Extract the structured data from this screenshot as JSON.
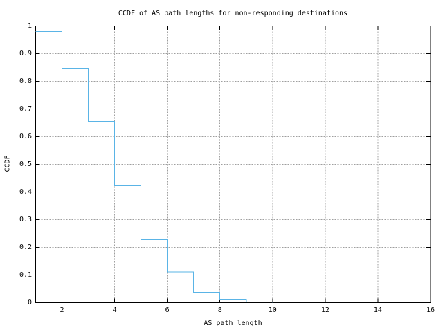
{
  "chart_data": {
    "type": "line",
    "subtype": "step-post",
    "title": "CCDF of AS path lengths for non-responding destinations",
    "xlabel": "AS path length",
    "ylabel": "CCDF",
    "xlim": [
      1,
      16
    ],
    "ylim": [
      0,
      1
    ],
    "xticks": [
      2,
      4,
      6,
      8,
      10,
      12,
      14,
      16
    ],
    "xtick_labels": [
      "2",
      "4",
      "6",
      "8",
      "10",
      "12",
      "14",
      "16"
    ],
    "yticks": [
      0,
      0.1,
      0.2,
      0.3,
      0.4,
      0.5,
      0.6,
      0.7,
      0.8,
      0.9,
      1
    ],
    "ytick_labels": [
      "0",
      "0.1",
      "0.2",
      "0.3",
      "0.4",
      "0.5",
      "0.6",
      "0.7",
      "0.8",
      "0.9",
      "1"
    ],
    "grid": true,
    "legend": "none",
    "x": [
      1,
      2,
      3,
      4,
      5,
      6,
      7,
      8,
      9,
      10
    ],
    "y": [
      0.98,
      0.845,
      0.655,
      0.4225,
      0.2275,
      0.111,
      0.038,
      0.01,
      0.0025,
      0
    ],
    "colors": {
      "line": "#5ab4e6",
      "grid": "#9e9e9e",
      "axis": "#000000",
      "background": "#ffffff"
    }
  }
}
